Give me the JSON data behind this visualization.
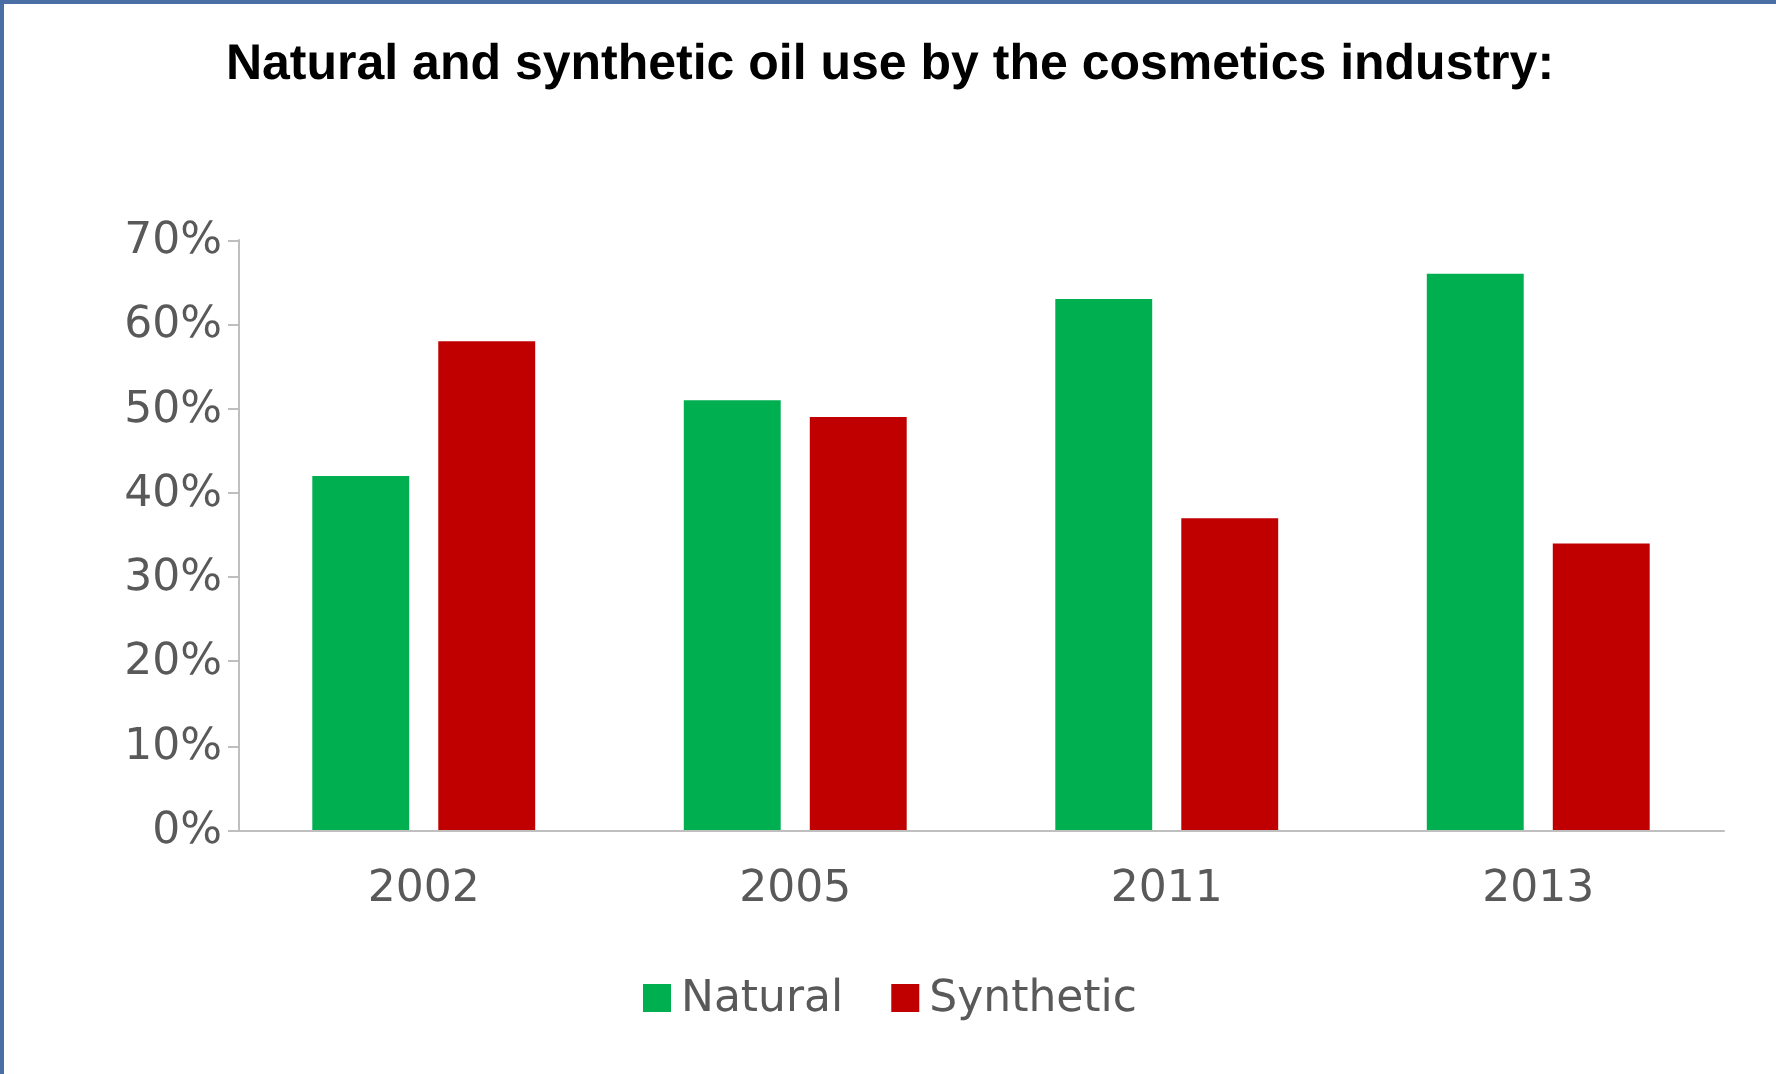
{
  "chart_data": {
    "type": "bar",
    "title": "Natural and synthetic oil use by the cosmetics industry:",
    "categories": [
      "2002",
      "2005",
      "2011",
      "2013"
    ],
    "series": [
      {
        "name": "Natural",
        "color": "#00b050",
        "values": [
          42,
          51,
          63,
          66
        ]
      },
      {
        "name": "Synthetic",
        "color": "#c00000",
        "values": [
          58,
          49,
          37,
          34
        ]
      }
    ],
    "ylim": [
      0,
      70
    ],
    "yticks": [
      {
        "value": 0,
        "label": "0%"
      },
      {
        "value": 10,
        "label": "10%"
      },
      {
        "value": 20,
        "label": "20%"
      },
      {
        "value": 30,
        "label": "30%"
      },
      {
        "value": 40,
        "label": "40%"
      },
      {
        "value": 50,
        "label": "50%"
      },
      {
        "value": 60,
        "label": "60%"
      },
      {
        "value": 70,
        "label": "70%"
      }
    ],
    "grid": false,
    "legend": "bottom"
  }
}
